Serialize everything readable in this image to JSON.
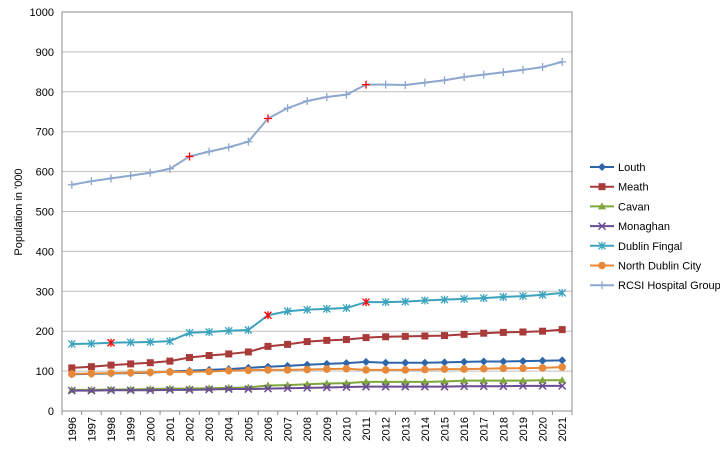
{
  "chart_data": {
    "type": "line",
    "ylabel": "Population in '000",
    "xlabel": "",
    "ylim": [
      0,
      1000
    ],
    "ytick_step": 100,
    "grid": "horizontal",
    "legend": "right",
    "x": [
      "1996",
      "1997",
      "1998",
      "1999",
      "2000",
      "2001",
      "2002",
      "2003",
      "2004",
      "2005",
      "2006",
      "2007",
      "2008",
      "2009",
      "2010",
      "2011",
      "2012",
      "2013",
      "2014",
      "2015",
      "2016",
      "2017",
      "2018",
      "2019",
      "2020",
      "2021"
    ],
    "series": [
      {
        "name": "Louth",
        "color": "#2E64A8",
        "marker": "diamond",
        "values": [
          92,
          93,
          94,
          95,
          96,
          99,
          101,
          103,
          105,
          108,
          111,
          113,
          116,
          118,
          120,
          123,
          121,
          121,
          121,
          122,
          123,
          124,
          124,
          125,
          126,
          127
        ],
        "highlight": []
      },
      {
        "name": "Meath",
        "color": "#A83A3A",
        "marker": "square",
        "values": [
          108,
          111,
          115,
          118,
          121,
          125,
          134,
          139,
          143,
          148,
          162,
          167,
          174,
          177,
          179,
          184,
          186,
          187,
          188,
          189,
          192,
          195,
          197,
          198,
          200,
          204
        ],
        "highlight": []
      },
      {
        "name": "Cavan",
        "color": "#7EA83A",
        "marker": "triangle",
        "values": [
          53,
          53,
          54,
          54,
          55,
          56,
          56,
          57,
          58,
          59,
          64,
          65,
          67,
          69,
          70,
          73,
          73,
          73,
          73,
          74,
          76,
          76,
          76,
          76,
          77,
          77
        ],
        "highlight": []
      },
      {
        "name": "Monaghan",
        "color": "#6A4C93",
        "marker": "x",
        "values": [
          51,
          51,
          52,
          52,
          52,
          53,
          53,
          54,
          55,
          55,
          56,
          57,
          58,
          59,
          60,
          61,
          61,
          61,
          61,
          61,
          62,
          62,
          62,
          63,
          63,
          63
        ],
        "highlight": []
      },
      {
        "name": "Dublin Fingal",
        "color": "#3BA3BE",
        "marker": "star",
        "values": [
          168,
          169,
          171,
          172,
          173,
          175,
          196,
          198,
          201,
          203,
          240,
          250,
          254,
          256,
          258,
          273,
          273,
          274,
          277,
          279,
          281,
          283,
          286,
          288,
          291,
          296
        ],
        "highlight": [
          2,
          10,
          15
        ]
      },
      {
        "name": "North Dublin City",
        "color": "#E8893A",
        "marker": "circle",
        "values": [
          93,
          94,
          95,
          96,
          97,
          98,
          98,
          99,
          101,
          102,
          103,
          103,
          104,
          105,
          106,
          103,
          103,
          103,
          104,
          105,
          105,
          106,
          107,
          107,
          108,
          110
        ],
        "highlight": []
      },
      {
        "name": "RCSI Hospital Group",
        "color": "#8EA7CE",
        "marker": "plus",
        "values": [
          567,
          576,
          583,
          590,
          597,
          607,
          638,
          650,
          661,
          675,
          733,
          759,
          777,
          787,
          793,
          818,
          818,
          817,
          823,
          829,
          837,
          843,
          849,
          855,
          862,
          875
        ],
        "highlight": [
          6,
          10,
          15
        ]
      }
    ],
    "highlight_color": "#FF0000"
  }
}
